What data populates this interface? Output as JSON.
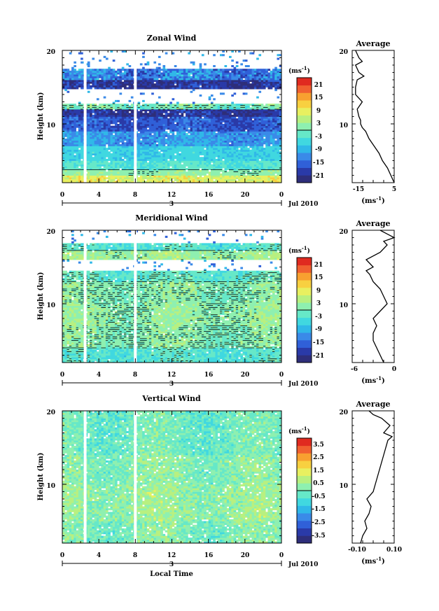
{
  "chart_data": [
    {
      "type": "heatmap",
      "title": "Zonal Wind",
      "ylabel": "Height (km)",
      "yticks": [
        "20",
        "10"
      ],
      "xticks": [
        "0",
        "4",
        "8",
        "12",
        "16",
        "20",
        "0"
      ],
      "date_label": "3",
      "month_label": "Jul 2010",
      "xlim": [
        0,
        24
      ],
      "ylim": [
        2,
        20
      ],
      "colorbar": {
        "unit": "(ms",
        "unit_exp": "-1",
        "unit_close": ")",
        "ticks": [
          "21",
          "15",
          "9",
          "3",
          "-3",
          "-9",
          "-15",
          "-21"
        ],
        "range": [
          -24,
          24
        ]
      },
      "zero_contour": true,
      "data_gaps_local_time": [
        2.5,
        8
      ],
      "height_bands": [
        {
          "y0": 2,
          "y1": 3,
          "value": 8,
          "noise": 3
        },
        {
          "y0": 3,
          "y1": 3.8,
          "value": 2,
          "noise": 2
        },
        {
          "y0": 3.8,
          "y1": 5,
          "value": -3,
          "noise": 2
        },
        {
          "y0": 5,
          "y1": 7,
          "value": -6,
          "noise": 2
        },
        {
          "y0": 7,
          "y1": 9,
          "value": -11,
          "noise": 3
        },
        {
          "y0": 9,
          "y1": 11,
          "value": -16,
          "noise": 3
        },
        {
          "y0": 11,
          "y1": 12,
          "value": -20,
          "noise": 3
        },
        {
          "y0": 12,
          "y1": 12.8,
          "value": 0,
          "noise": 4
        },
        {
          "y0": 12.8,
          "y1": 14.8,
          "value": null,
          "noise": 0
        },
        {
          "y0": 14.8,
          "y1": 16,
          "value": -20,
          "noise": 4
        },
        {
          "y0": 16,
          "y1": 17.4,
          "value": -13,
          "noise": 5
        },
        {
          "y0": 17.4,
          "y1": 20,
          "value": null,
          "noise": 0
        }
      ],
      "average_profile": {
        "title": "Average",
        "xticks": [
          "-15",
          "5"
        ],
        "xlim": [
          -20,
          5
        ],
        "yticks": [
          "20",
          "10"
        ],
        "unit": "(ms",
        "unit_exp": "-1",
        "unit_close": ")",
        "points": [
          [
            5,
            2
          ],
          [
            3,
            3
          ],
          [
            1,
            4
          ],
          [
            -2,
            5
          ],
          [
            -4,
            6
          ],
          [
            -7,
            7
          ],
          [
            -10,
            8
          ],
          [
            -12,
            9
          ],
          [
            -14,
            9.5
          ],
          [
            -15,
            10
          ],
          [
            -15,
            10.5
          ],
          [
            -16,
            11
          ],
          [
            -17,
            12
          ],
          [
            -14,
            13
          ],
          [
            -16,
            13.5
          ],
          [
            -18,
            14
          ],
          [
            -18,
            15
          ],
          [
            -17,
            16
          ],
          [
            -13,
            16.5
          ],
          [
            -16,
            17
          ],
          [
            -18,
            18
          ],
          [
            -14,
            18.5
          ],
          [
            -16,
            19
          ],
          [
            -18,
            20
          ]
        ]
      }
    },
    {
      "type": "heatmap",
      "title": "Meridional Wind",
      "ylabel": "Height (km)",
      "yticks": [
        "20",
        "10"
      ],
      "xticks": [
        "0",
        "4",
        "8",
        "12",
        "16",
        "20",
        "0"
      ],
      "date_label": "3",
      "month_label": "Jul 2010",
      "xlim": [
        0,
        24
      ],
      "ylim": [
        2,
        20
      ],
      "colorbar": {
        "unit": "(ms",
        "unit_exp": "-1",
        "unit_close": ")",
        "ticks": [
          "21",
          "15",
          "9",
          "3",
          "-3",
          "-9",
          "-15",
          "-21"
        ],
        "range": [
          -24,
          24
        ]
      },
      "zero_contour": true,
      "data_gaps_local_time": [
        2.5,
        8
      ],
      "height_bands": [
        {
          "y0": 2,
          "y1": 4,
          "value": -3,
          "noise": 3
        },
        {
          "y0": 4,
          "y1": 7,
          "value": 1,
          "noise": 3
        },
        {
          "y0": 7,
          "y1": 10,
          "value": 2,
          "noise": 3
        },
        {
          "y0": 10,
          "y1": 13,
          "value": 1,
          "noise": 3
        },
        {
          "y0": 13,
          "y1": 14.5,
          "value": -2,
          "noise": 3
        },
        {
          "y0": 14.5,
          "y1": 16,
          "value": null,
          "noise": 0
        },
        {
          "y0": 16,
          "y1": 17.3,
          "value": 3,
          "noise": 3
        },
        {
          "y0": 17.3,
          "y1": 18.2,
          "value": -3,
          "noise": 3
        },
        {
          "y0": 18.2,
          "y1": 20,
          "value": null,
          "noise": 0
        }
      ],
      "average_profile": {
        "title": "Average",
        "xticks": [
          "-6",
          "0"
        ],
        "xlim": [
          -6,
          0
        ],
        "yticks": [
          "20",
          "10"
        ],
        "unit": "(ms",
        "unit_exp": "-1",
        "unit_close": ")",
        "points": [
          [
            -1.5,
            2
          ],
          [
            -2,
            3
          ],
          [
            -2.5,
            4
          ],
          [
            -3,
            5
          ],
          [
            -3,
            6
          ],
          [
            -2.5,
            7
          ],
          [
            -3,
            8
          ],
          [
            -2,
            9
          ],
          [
            -1,
            10
          ],
          [
            -1.5,
            11
          ],
          [
            -2,
            12
          ],
          [
            -3,
            13
          ],
          [
            -3.5,
            14
          ],
          [
            -4,
            14.5
          ],
          [
            -3,
            15
          ],
          [
            -4,
            16
          ],
          [
            -2,
            17
          ],
          [
            -1,
            18
          ],
          [
            -1.5,
            18.5
          ],
          [
            0,
            19
          ],
          [
            -1,
            19.5
          ],
          [
            -2,
            20
          ]
        ]
      }
    },
    {
      "type": "heatmap",
      "title": "Vertical Wind",
      "ylabel": "Height (km)",
      "xlabel": "Local Time",
      "yticks": [
        "20",
        "10"
      ],
      "xticks": [
        "0",
        "4",
        "8",
        "12",
        "16",
        "20",
        "0"
      ],
      "date_label": "3",
      "month_label": "Jul 2010",
      "xlim": [
        0,
        24
      ],
      "ylim": [
        2,
        20
      ],
      "colorbar": {
        "unit": "(ms",
        "unit_exp": "-1",
        "unit_close": ")",
        "ticks": [
          "3.5",
          "2.5",
          "1.5",
          "0.5",
          "-0.5",
          "-1.5",
          "-2.5",
          "-3.5"
        ],
        "range": [
          -4,
          4
        ]
      },
      "zero_contour": false,
      "data_gaps_local_time": [
        2.5,
        8
      ],
      "height_bands": [
        {
          "y0": 2,
          "y1": 5,
          "value": 0.1,
          "noise": 0.6
        },
        {
          "y0": 5,
          "y1": 10,
          "value": 0.4,
          "noise": 0.6
        },
        {
          "y0": 10,
          "y1": 14,
          "value": 0.2,
          "noise": 0.6
        },
        {
          "y0": 14,
          "y1": 20,
          "value": -0.1,
          "noise": 0.6
        }
      ],
      "average_profile": {
        "title": "Average",
        "xticks": [
          "-0.10",
          "0.10"
        ],
        "xlim": [
          -0.1,
          0.1
        ],
        "yticks": [
          "20",
          "10"
        ],
        "unit": "(ms",
        "unit_exp": "-1",
        "unit_close": ")",
        "points": [
          [
            -0.06,
            2
          ],
          [
            -0.05,
            3
          ],
          [
            -0.03,
            4
          ],
          [
            -0.04,
            5
          ],
          [
            -0.02,
            6
          ],
          [
            -0.01,
            7
          ],
          [
            -0.03,
            8
          ],
          [
            0.0,
            9
          ],
          [
            0.01,
            10
          ],
          [
            0.02,
            11
          ],
          [
            0.03,
            12
          ],
          [
            0.04,
            13
          ],
          [
            0.05,
            14
          ],
          [
            0.06,
            15
          ],
          [
            0.07,
            16
          ],
          [
            0.09,
            16.5
          ],
          [
            0.05,
            17
          ],
          [
            0.08,
            18
          ],
          [
            0.04,
            19
          ],
          [
            0.0,
            19.5
          ],
          [
            -0.02,
            20
          ]
        ]
      }
    }
  ],
  "colormap": [
    "#2e2e7a",
    "#2a3aa8",
    "#3060d8",
    "#3a8ae8",
    "#30b8e8",
    "#40d8e0",
    "#66e8c8",
    "#8ef0b0",
    "#b8f080",
    "#e8f060",
    "#f8d040",
    "#f8a030",
    "#f06030",
    "#e02a20"
  ]
}
